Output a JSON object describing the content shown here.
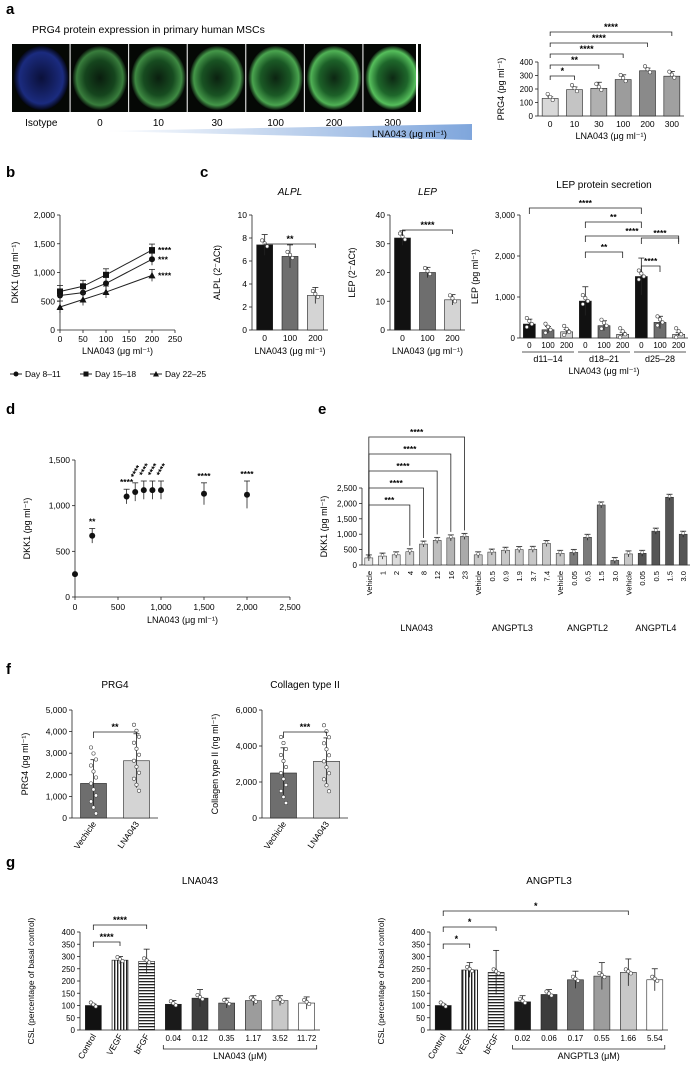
{
  "panels": {
    "a": "a",
    "b": "b",
    "c": "c",
    "d": "d",
    "e": "e",
    "f": "f",
    "g": "g"
  },
  "micrograph": {
    "title": "PRG4 protein expression in primary human MSCs",
    "labels": [
      "Isotype",
      "0",
      "10",
      "30",
      "100",
      "200",
      "300"
    ],
    "gradient_label": "LNA043 (μg ml⁻¹)"
  },
  "colors": {
    "dark": "#1a1a1a",
    "mid": "#6e6e6e",
    "light": "#c8c8c8",
    "lighter": "#e4e4e4",
    "gradient": "#a9c3e6",
    "fluor": "#3fa34d",
    "nuclei": "#1d2f8c"
  },
  "chart_data": [
    {
      "id": "a",
      "type": "bar",
      "categories": [
        "0",
        "10",
        "30",
        "100",
        "200",
        "300"
      ],
      "values": [
        130,
        195,
        205,
        270,
        335,
        295
      ],
      "errors": [
        12,
        20,
        45,
        35,
        20,
        35
      ],
      "xlabel": "LNA043 (μg ml⁻¹)",
      "ylabel": "PRG4 (pg ml⁻¹)",
      "ylim": [
        0,
        400
      ],
      "yticks": [
        "0",
        "100",
        "200",
        "300",
        "400"
      ],
      "significance": [
        "*",
        "**",
        "****",
        "****",
        "****"
      ]
    },
    {
      "id": "b",
      "type": "line",
      "x": [
        0,
        50,
        100,
        200
      ],
      "series": [
        {
          "name": "Day 8–11",
          "values": [
            600,
            650,
            810,
            1230
          ],
          "sig": "***"
        },
        {
          "name": "Day 15–18",
          "values": [
            670,
            760,
            960,
            1390
          ],
          "sig": "****"
        },
        {
          "name": "Day 22–25",
          "values": [
            400,
            530,
            660,
            950
          ],
          "sig": "****"
        }
      ],
      "xlabel": "LNA043 (μg ml⁻¹)",
      "ylabel": "DKK1 (pg ml⁻¹)",
      "xlim": [
        0,
        250
      ],
      "ylim": [
        0,
        2000
      ],
      "xticks": [
        "0",
        "50",
        "100",
        "150",
        "200",
        "250"
      ],
      "yticks": [
        "0",
        "500",
        "1,000",
        "1,500",
        "2,000"
      ]
    },
    {
      "id": "c1",
      "type": "bar",
      "title": "ALPL",
      "categories": [
        "0",
        "100",
        "200"
      ],
      "values": [
        7.4,
        6.4,
        3.0
      ],
      "errors": [
        0.9,
        1.0,
        0.7
      ],
      "xlabel": "LNA043 (μg ml⁻¹)",
      "ylabel": "ALPL (2⁻ΔCt)",
      "ylim": [
        0,
        10
      ],
      "yticks": [
        "0",
        "2",
        "4",
        "6",
        "8",
        "10"
      ],
      "significance": [
        "**"
      ]
    },
    {
      "id": "c2",
      "type": "bar",
      "title": "LEP",
      "categories": [
        "0",
        "100",
        "200"
      ],
      "values": [
        32,
        20,
        10.5
      ],
      "errors": [
        2.5,
        1.8,
        1.8
      ],
      "xlabel": "LNA043 (μg ml⁻¹)",
      "ylabel": "LEP (2⁻ΔCt)",
      "ylim": [
        0,
        40
      ],
      "yticks": [
        "0",
        "10",
        "20",
        "30",
        "40"
      ],
      "significance": [
        "****"
      ]
    },
    {
      "id": "c3",
      "type": "bar",
      "title": "LEP protein secretion",
      "groups": [
        "d11–14",
        "d18–21",
        "d25–28"
      ],
      "categories": [
        "0",
        "100",
        "200",
        "0",
        "100",
        "200",
        "0",
        "100",
        "200"
      ],
      "values": [
        340,
        200,
        150,
        900,
        300,
        90,
        1500,
        380,
        90
      ],
      "errors": [
        120,
        80,
        60,
        350,
        120,
        50,
        450,
        150,
        40
      ],
      "xlabel": "LNA043 (μg ml⁻¹)",
      "ylabel": "LEP (pg ml⁻¹)",
      "ylim": [
        0,
        3000
      ],
      "yticks": [
        "0",
        "1,000",
        "2,000",
        "3,000"
      ],
      "significance": [
        "****",
        "**",
        "****",
        "**",
        "****",
        "****"
      ]
    },
    {
      "id": "d",
      "type": "scatter",
      "x": [
        0,
        200,
        600,
        700,
        800,
        900,
        1000,
        1500,
        2000
      ],
      "y": [
        250,
        670,
        1100,
        1150,
        1170,
        1170,
        1170,
        1130,
        1120
      ],
      "errors": [
        0,
        80,
        80,
        100,
        100,
        100,
        100,
        120,
        150
      ],
      "labels": [
        "",
        "**",
        "****",
        "****",
        "****",
        "****",
        "****",
        "****",
        "****"
      ],
      "xlabel": "LNA043 (μg ml⁻¹)",
      "ylabel": "DKK1 (pg ml⁻¹)",
      "xlim": [
        0,
        2500
      ],
      "ylim": [
        0,
        1500
      ],
      "xticks": [
        "0",
        "500",
        "1,000",
        "1,500",
        "2,000",
        "2,500"
      ],
      "yticks": [
        "0",
        "500",
        "1,000",
        "1,500"
      ]
    },
    {
      "id": "e",
      "type": "bar",
      "ylabel": "DKK1 (pg ml⁻¹)",
      "ylim": [
        0,
        2500
      ],
      "yticks": [
        "0",
        "500",
        "1,000",
        "1,500",
        "2,000",
        "2,500"
      ],
      "groups": [
        {
          "name": "LNA043",
          "categories": [
            "Vehicle",
            "1",
            "2",
            "4",
            "8",
            "12",
            "16",
            "23"
          ],
          "values": [
            230,
            290,
            330,
            430,
            680,
            800,
            880,
            930
          ]
        },
        {
          "name": "ANGPTL3",
          "categories": [
            "Vehicle",
            "0.5",
            "0.9",
            "1.9",
            "3.7",
            "7.4"
          ],
          "values": [
            330,
            420,
            480,
            500,
            510,
            700
          ]
        },
        {
          "name": "ANGPTL2",
          "categories": [
            "Vehicle",
            "0.05",
            "0.5",
            "1.5",
            "3.0"
          ],
          "values": [
            380,
            410,
            900,
            1950,
            150
          ]
        },
        {
          "name": "ANGPTL4",
          "categories": [
            "Vehicle",
            "0.05",
            "0.5",
            "1.5",
            "3.0"
          ],
          "values": [
            360,
            380,
            1100,
            2200,
            1000
          ]
        }
      ],
      "significance": [
        "***",
        "****",
        "****",
        "****",
        "****"
      ]
    },
    {
      "id": "f1",
      "type": "bar",
      "title": "PRG4",
      "categories": [
        "Vechicle",
        "LNA043"
      ],
      "values": [
        1600,
        2650
      ],
      "errors": [
        1100,
        1250
      ],
      "ylabel": "PRG4 (pg ml⁻¹)",
      "ylim": [
        0,
        5000
      ],
      "yticks": [
        "0",
        "1,000",
        "2,000",
        "3,000",
        "4,000",
        "5,000"
      ],
      "significance": [
        "**"
      ]
    },
    {
      "id": "f2",
      "type": "bar",
      "title": "Collagen type II",
      "categories": [
        "Vechicle",
        "LNA043"
      ],
      "values": [
        2500,
        3150
      ],
      "errors": [
        1400,
        1300
      ],
      "ylabel": "Collagen type II (ng ml⁻¹)",
      "ylim": [
        0,
        6000
      ],
      "yticks": [
        "0",
        "2,000",
        "4,000",
        "6,000"
      ],
      "significance": [
        "***"
      ]
    },
    {
      "id": "g1",
      "type": "bar",
      "title": "LNA043",
      "categories": [
        "Control",
        "VEGF",
        "bFGF",
        "0.04",
        "0.12",
        "0.35",
        "1.17",
        "3.52",
        "11.72"
      ],
      "values": [
        100,
        285,
        280,
        105,
        130,
        110,
        120,
        120,
        110
      ],
      "errors": [
        6,
        15,
        50,
        15,
        35,
        20,
        20,
        20,
        25
      ],
      "ylabel": "CSL (percentage of basal control)",
      "xlabel": "LNA043 (μM)",
      "ylim": [
        0,
        400
      ],
      "yticks": [
        "0",
        "50",
        "100",
        "150",
        "200",
        "250",
        "300",
        "350",
        "400"
      ],
      "significance": [
        "****",
        "****"
      ]
    },
    {
      "id": "g2",
      "type": "bar",
      "title": "ANGPTL3",
      "categories": [
        "Control",
        "VEGF",
        "bFGF",
        "0.02",
        "0.06",
        "0.17",
        "0.55",
        "1.66",
        "5.54"
      ],
      "values": [
        100,
        245,
        235,
        115,
        145,
        205,
        220,
        235,
        205
      ],
      "errors": [
        6,
        30,
        90,
        25,
        20,
        35,
        55,
        55,
        45
      ],
      "ylabel": "CSL (percentage of basal control)",
      "xlabel": "ANGPTL3 (μM)",
      "ylim": [
        0,
        400
      ],
      "yticks": [
        "0",
        "50",
        "100",
        "150",
        "200",
        "250",
        "300",
        "350",
        "400"
      ],
      "significance": [
        "*",
        "*",
        "*"
      ]
    }
  ]
}
